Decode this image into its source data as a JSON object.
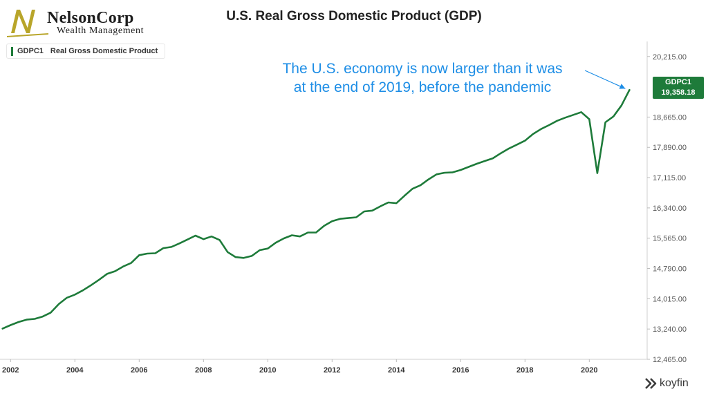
{
  "logo": {
    "name": "NelsonCorp",
    "subtitle": "Wealth Management",
    "colors": {
      "gold": "#b8a52a",
      "dark": "#1d1d1d"
    }
  },
  "brand": {
    "name": "koyfin",
    "icon": "koyfin-icon"
  },
  "chart_data": {
    "type": "line",
    "title": "U.S. Real Gross Domestic Product (GDP)",
    "xlabel": "",
    "ylabel": "",
    "xlim": [
      2001.8,
      2021.8
    ],
    "ylim": [
      12465,
      20600
    ],
    "x_ticks": [
      2002,
      2004,
      2006,
      2008,
      2010,
      2012,
      2014,
      2016,
      2018,
      2020
    ],
    "x_tick_labels": [
      "2002",
      "2004",
      "2006",
      "2008",
      "2010",
      "2012",
      "2014",
      "2016",
      "2018",
      "2020"
    ],
    "y_ticks": [
      12465,
      13240,
      14015,
      14790,
      15565,
      16340,
      17115,
      17890,
      18665,
      20215
    ],
    "y_tick_labels": [
      "12,465.00",
      "13,240.00",
      "14,015.00",
      "14,790.00",
      "15,565.00",
      "16,340.00",
      "17,115.00",
      "17,890.00",
      "18,665.00",
      "20,215.00"
    ],
    "legend": {
      "code": "GDPC1",
      "label": "Real Gross Domestic Product",
      "position": "top-left"
    },
    "annotation": "The U.S. economy is now larger than it was at the end of 2019, before the pandemic",
    "last_value": {
      "code": "GDPC1",
      "value": "19,358.18"
    },
    "line_color": "#1e7b3a",
    "annotation_color": "#1e8ee6",
    "series": [
      {
        "name": "GDPC1",
        "x": [
          2001.75,
          2002.0,
          2002.25,
          2002.5,
          2002.75,
          2003.0,
          2003.25,
          2003.5,
          2003.75,
          2004.0,
          2004.25,
          2004.5,
          2004.75,
          2005.0,
          2005.25,
          2005.5,
          2005.75,
          2006.0,
          2006.25,
          2006.5,
          2006.75,
          2007.0,
          2007.25,
          2007.5,
          2007.75,
          2008.0,
          2008.25,
          2008.5,
          2008.75,
          2009.0,
          2009.25,
          2009.5,
          2009.75,
          2010.0,
          2010.25,
          2010.5,
          2010.75,
          2011.0,
          2011.25,
          2011.5,
          2011.75,
          2012.0,
          2012.25,
          2012.5,
          2012.75,
          2013.0,
          2013.25,
          2013.5,
          2013.75,
          2014.0,
          2014.25,
          2014.5,
          2014.75,
          2015.0,
          2015.25,
          2015.5,
          2015.75,
          2016.0,
          2016.25,
          2016.5,
          2016.75,
          2017.0,
          2017.25,
          2017.5,
          2017.75,
          2018.0,
          2018.25,
          2018.5,
          2018.75,
          2019.0,
          2019.25,
          2019.5,
          2019.75,
          2020.0,
          2020.25,
          2020.5,
          2020.75,
          2021.0,
          2021.25
        ],
        "values": [
          13250,
          13340,
          13420,
          13480,
          13500,
          13560,
          13660,
          13880,
          14040,
          14120,
          14230,
          14360,
          14500,
          14650,
          14720,
          14840,
          14930,
          15130,
          15170,
          15180,
          15310,
          15340,
          15430,
          15530,
          15630,
          15540,
          15610,
          15520,
          15210,
          15080,
          15060,
          15110,
          15260,
          15300,
          15450,
          15560,
          15640,
          15610,
          15710,
          15710,
          15880,
          16000,
          16060,
          16080,
          16100,
          16250,
          16270,
          16380,
          16480,
          16460,
          16650,
          16830,
          16920,
          17070,
          17200,
          17240,
          17250,
          17310,
          17390,
          17470,
          17540,
          17610,
          17740,
          17860,
          17960,
          18060,
          18230,
          18360,
          18460,
          18570,
          18650,
          18720,
          18790,
          18610,
          17230,
          18530,
          18680,
          18960,
          19358.18
        ]
      }
    ]
  }
}
